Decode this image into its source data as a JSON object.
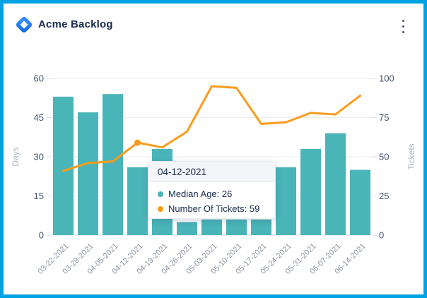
{
  "window": {
    "title": "Acme Backlog",
    "logo": "jira-diamond-logo",
    "menu": "kebab-menu"
  },
  "colors": {
    "frame_border": "#00a3e1",
    "bar": "#4ab5b9",
    "line": "#f89c1c",
    "title_text": "#172b4d",
    "y_tick_text": "#42526e",
    "x_tick_text": "#8a94a4",
    "axis_name_text": "#a9b2c0",
    "gridline": "#e9ebef",
    "tick_mark": "#d9dee5",
    "tooltip_header_bg": "#f4f5f9",
    "tooltip_border": "#ebecf0"
  },
  "chart_data": {
    "type": "combo-bar-line",
    "title": "",
    "categories": [
      "03-22-2021",
      "03-29-2021",
      "04-05-2021",
      "04-12-2021",
      "04-19-2021",
      "04-26-2021",
      "05-03-2021",
      "05-10-2021",
      "05-17-2021",
      "05-24-2021",
      "05-31-2021",
      "06-07-2021",
      "06-14-2021"
    ],
    "series": [
      {
        "name": "Median Age",
        "type": "bar",
        "axis": "left",
        "color": "#4ab5b9",
        "values": [
          53,
          47,
          54,
          26,
          33,
          5,
          6,
          6,
          6,
          26,
          33,
          39,
          25
        ]
      },
      {
        "name": "Number Of Tickets",
        "type": "line",
        "axis": "right",
        "color": "#f89c1c",
        "values": [
          41,
          46,
          47,
          59,
          56,
          66,
          95,
          94,
          71,
          72,
          78,
          77,
          89
        ],
        "highlight_index": 3
      }
    ],
    "left_axis": {
      "name": "Days",
      "min": 0,
      "max": 60,
      "ticks": [
        0,
        15,
        30,
        45,
        60
      ]
    },
    "right_axis": {
      "name": "Tickets",
      "min": 0,
      "max": 100,
      "ticks": [
        0,
        25,
        50,
        75,
        100
      ]
    },
    "grid": "horizontal",
    "legend_position": "none",
    "x_label_rotation": -45
  },
  "tooltip": {
    "title": "04-12-2021",
    "rows": [
      {
        "label": "Median Age",
        "value": 26,
        "color": "#4ab5b9"
      },
      {
        "label": "Number Of Tickets",
        "value": 59,
        "color": "#f89c1c"
      }
    ]
  }
}
